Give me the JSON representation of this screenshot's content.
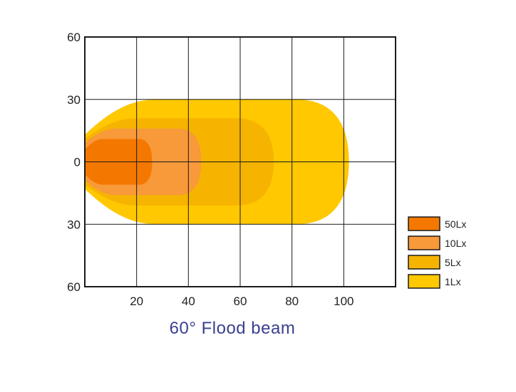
{
  "chart_data": {
    "type": "area",
    "title": "60° Flood beam",
    "x_ticks": [
      "20",
      "40",
      "60",
      "80",
      "100"
    ],
    "x_tick_values": [
      20,
      40,
      60,
      80,
      100
    ],
    "y_ticks": [
      "60",
      "30",
      "0",
      "30",
      "60"
    ],
    "y_tick_values": [
      60,
      30,
      0,
      -30,
      -60
    ],
    "xlim": [
      0,
      120
    ],
    "ylim": [
      -60,
      60
    ],
    "grid": true,
    "legend_position": "right",
    "series": [
      {
        "name": "1Lx",
        "color": "#FFC800",
        "reach": 102,
        "half_width_at_origin": 13,
        "max_half_width": 30
      },
      {
        "name": "5Lx",
        "color": "#F6B400",
        "reach": 73,
        "half_width_at_origin": 11,
        "max_half_width": 21
      },
      {
        "name": "10Lx",
        "color": "#F8993A",
        "reach": 45,
        "half_width_at_origin": 9,
        "max_half_width": 16
      },
      {
        "name": "50Lx",
        "color": "#F47800",
        "reach": 26,
        "half_width_at_origin": 6,
        "max_half_width": 11
      }
    ],
    "legend": [
      {
        "label": "50Lx",
        "color": "#F47800"
      },
      {
        "label": "10Lx",
        "color": "#F8993A"
      },
      {
        "label": "5Lx",
        "color": "#F6B400"
      },
      {
        "label": "1Lx",
        "color": "#FFC800"
      }
    ]
  }
}
